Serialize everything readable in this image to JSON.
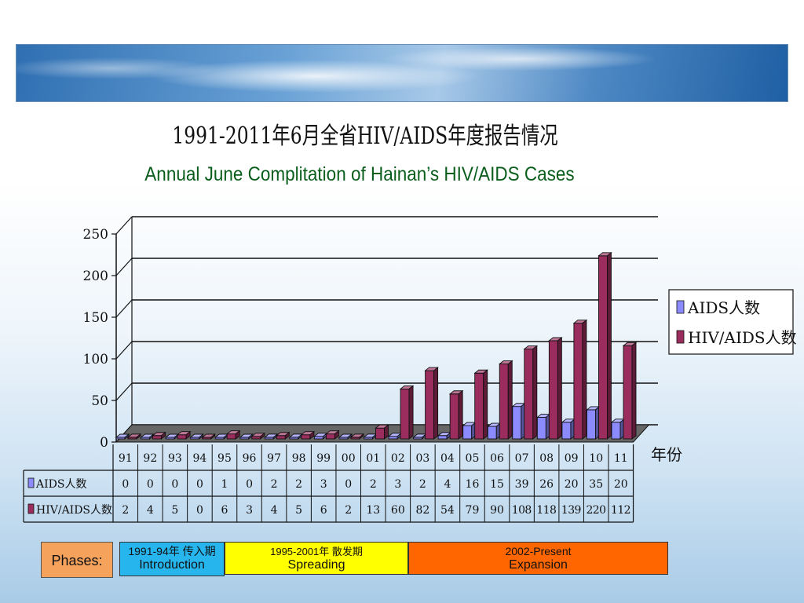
{
  "slide": {
    "title_cn": "1991-2011年6月全省HIV/AIDS年度报告情况",
    "title_en": "Annual June Complitation of Hainan’s HIV/AIDS Cases"
  },
  "chart_data": {
    "type": "bar",
    "style": "3d-clustered-column-with-data-table",
    "categories": [
      "91",
      "92",
      "93",
      "94",
      "95",
      "96",
      "97",
      "98",
      "99",
      "00",
      "01",
      "02",
      "03",
      "04",
      "05",
      "06",
      "07",
      "08",
      "09",
      "10",
      "11"
    ],
    "x_unit_label": "年份",
    "series": [
      {
        "name": "AIDS人数",
        "values": [
          0,
          0,
          0,
          0,
          1,
          0,
          2,
          2,
          3,
          0,
          2,
          3,
          2,
          4,
          16,
          15,
          39,
          26,
          20,
          35,
          20
        ],
        "color": "#8b8bff"
      },
      {
        "name": "HIV/AIDS人数",
        "values": [
          2,
          4,
          5,
          0,
          6,
          3,
          4,
          5,
          6,
          2,
          13,
          60,
          82,
          54,
          79,
          90,
          108,
          118,
          139,
          220,
          112
        ],
        "color": "#9b2d5e"
      }
    ],
    "y_ticks": [
      "0",
      "50",
      "100",
      "150",
      "200",
      "250"
    ],
    "ylim": [
      0,
      250
    ],
    "grid": true,
    "legend": "right"
  },
  "phases": {
    "label": "Phases:",
    "intro_cn": "1991-94年 传入期",
    "intro_en": "Introduction",
    "spread_cn": "1995-2001年 散发期",
    "spread_en": "Spreading",
    "expand_cn": "2002-Present",
    "expand_en": "Expansion",
    "colors": {
      "label": "#f5a25c",
      "intro": "#27b5ee",
      "spread": "#ffff00",
      "expand": "#ff6600"
    }
  }
}
